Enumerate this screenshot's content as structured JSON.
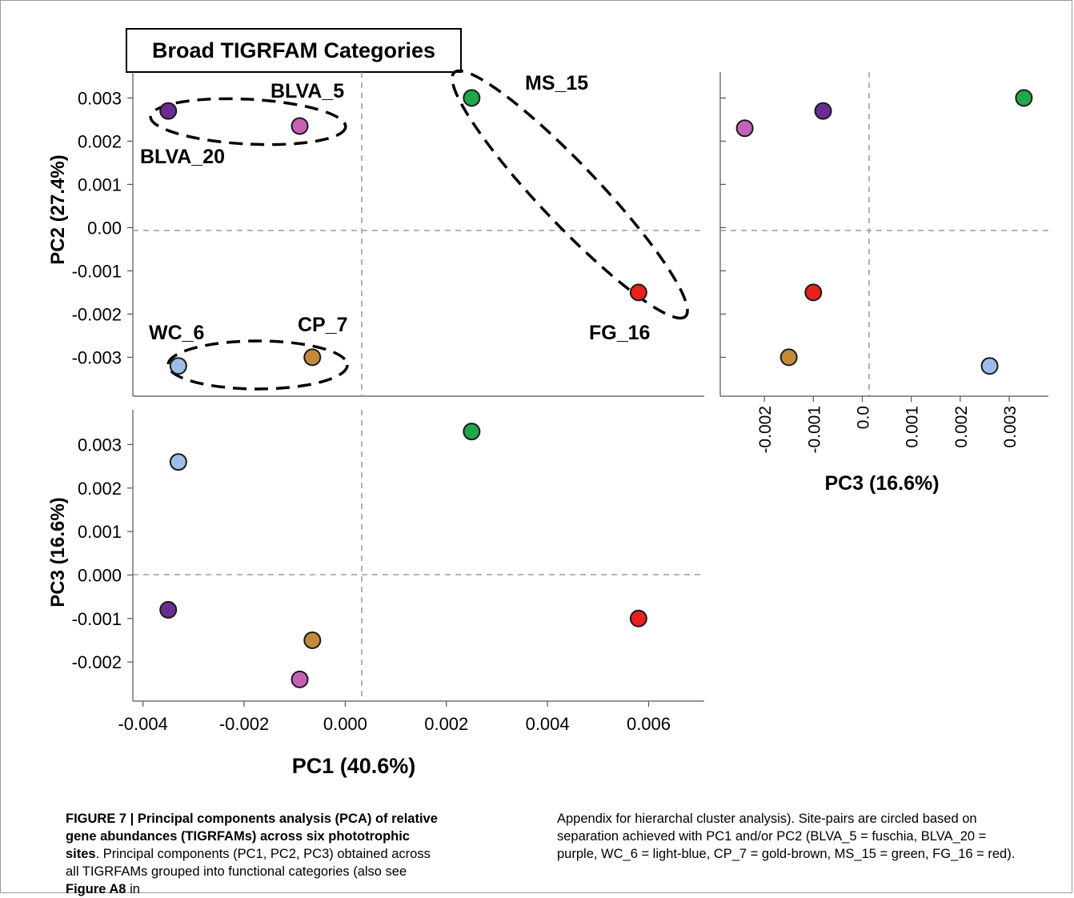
{
  "figure_title": "Broad TIGRFAM Categories",
  "colors": {
    "BLVA_5": "#c661b6",
    "BLVA_20": "#6b2d95",
    "WC_6": "#9dbde6",
    "CP_7": "#c48a3a",
    "MS_15": "#1ea84a",
    "FG_16": "#e8201e"
  },
  "chart_data": [
    {
      "type": "scatter",
      "panel": "PC1 vs PC2",
      "xlabel": "",
      "ylabel": "PC2 (27.4%)",
      "xlim": [
        -0.0042,
        0.0071
      ],
      "ylim": [
        -0.0039,
        0.0036
      ],
      "yticks": [
        "0.003",
        "0.002",
        "0.001",
        "0.00",
        "-0.001",
        "-0.002",
        "-0.003"
      ],
      "points": [
        {
          "site": "BLVA_5",
          "x": -0.0009,
          "y": 0.00235
        },
        {
          "site": "BLVA_20",
          "x": -0.0035,
          "y": 0.0027
        },
        {
          "site": "WC_6",
          "x": -0.0033,
          "y": -0.0032
        },
        {
          "site": "CP_7",
          "x": -0.00065,
          "y": -0.003
        },
        {
          "site": "MS_15",
          "x": 0.0025,
          "y": 0.003
        },
        {
          "site": "FG_16",
          "x": 0.0058,
          "y": -0.0015
        }
      ],
      "point_labels": [
        "BLVA_5",
        "BLVA_20",
        "MS_15",
        "WC_6",
        "CP_7",
        "FG_16"
      ],
      "grid": false
    },
    {
      "type": "scatter",
      "panel": "PC1 vs PC3",
      "xlabel": "PC1 (40.6%)",
      "ylabel": "PC3 (16.6%)",
      "xlim": [
        -0.0042,
        0.0071
      ],
      "ylim": [
        -0.0029,
        0.0038
      ],
      "xticks": [
        "-0.004",
        "-0.002",
        "0.000",
        "0.002",
        "0.004",
        "0.006"
      ],
      "yticks": [
        "0.003",
        "0.002",
        "0.001",
        "0.000",
        "-0.001",
        "-0.002"
      ],
      "points": [
        {
          "site": "BLVA_5",
          "x": -0.0009,
          "y": -0.0024
        },
        {
          "site": "BLVA_20",
          "x": -0.0035,
          "y": -0.0008
        },
        {
          "site": "WC_6",
          "x": -0.0033,
          "y": 0.0026
        },
        {
          "site": "CP_7",
          "x": -0.00065,
          "y": -0.0015
        },
        {
          "site": "MS_15",
          "x": 0.0025,
          "y": 0.0033
        },
        {
          "site": "FG_16",
          "x": 0.0058,
          "y": -0.001
        }
      ],
      "grid": false
    },
    {
      "type": "scatter",
      "panel": "PC3 vs PC2",
      "xlabel": "PC3 (16.6%)",
      "ylabel": "",
      "xlim": [
        -0.0029,
        0.0038
      ],
      "ylim": [
        -0.0039,
        0.0036
      ],
      "xticks": [
        "-0.002",
        "-0.001",
        "0.0",
        "0.001",
        "0.002",
        "0.003"
      ],
      "points": [
        {
          "site": "BLVA_5",
          "x": -0.0024,
          "y": 0.0023
        },
        {
          "site": "BLVA_20",
          "x": -0.0008,
          "y": 0.0027
        },
        {
          "site": "WC_6",
          "x": 0.0026,
          "y": -0.0032
        },
        {
          "site": "CP_7",
          "x": -0.0015,
          "y": -0.003
        },
        {
          "site": "MS_15",
          "x": 0.0033,
          "y": 0.003
        },
        {
          "site": "FG_16",
          "x": -0.001,
          "y": -0.0015
        }
      ],
      "grid": false
    }
  ],
  "caption": {
    "left_bold": "FIGURE 7 | Principal components analysis (PCA) of relative gene abundances (TIGRFAMs) across six phototrophic sites",
    "left_bold_end": ".",
    "left_text": " Principal components (PC1, PC2, PC3) obtained across all TIGRFAMs grouped into functional categories (also see ",
    "left_ref": "Figure A8",
    "left_tail": " in",
    "right_text": "Appendix for hierarchal cluster analysis). Site-pairs are circled based on separation achieved with PC1 and/or PC2 (BLVA_5 = fuschia, BLVA_20 = purple, WC_6 = light-blue, CP_7 = gold-brown, MS_15 = green, FG_16 = red)."
  }
}
